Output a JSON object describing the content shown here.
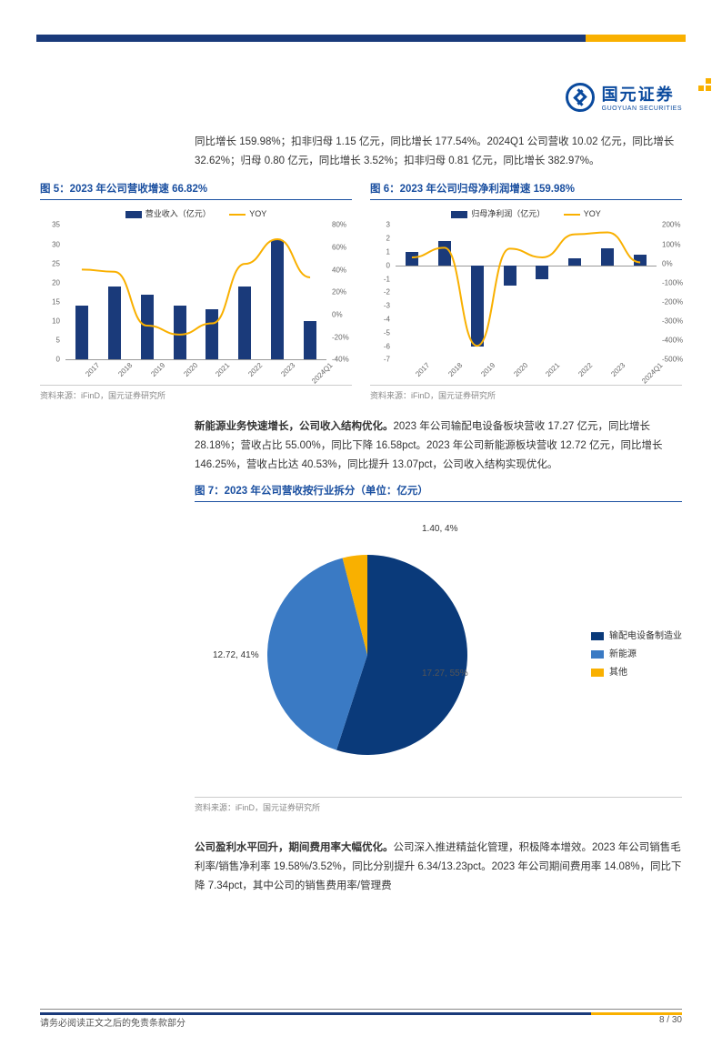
{
  "brand": {
    "cn": "国元证券",
    "en": "GUOYUAN SECURITIES"
  },
  "intro_text": "同比增长 159.98%；扣非归母 1.15 亿元，同比增长 177.54%。2024Q1 公司营收 10.02 亿元，同比增长 32.62%；归母 0.80 亿元，同比增长 3.52%；扣非归母 0.81 亿元，同比增长 382.97%。",
  "fig5": {
    "title": "图 5：2023 年公司营收增速 66.82%",
    "type": "bar+line",
    "legend_bar": "营业收入（亿元）",
    "legend_line": "YOY",
    "categories": [
      "2017",
      "2018",
      "2019",
      "2020",
      "2021",
      "2022",
      "2023",
      "2024Q1"
    ],
    "bar_values": [
      14,
      19,
      17,
      14,
      13,
      19,
      31,
      10
    ],
    "line_values_pct": [
      40,
      38,
      -10,
      -18,
      -8,
      45,
      67,
      33
    ],
    "y_left": {
      "min": 0,
      "max": 35,
      "step": 5
    },
    "y_right": {
      "min": -40,
      "max": 80,
      "step": 20
    },
    "bar_color": "#1a3a7a",
    "line_color": "#f9b000",
    "source": "资料来源：iFinD，国元证券研究所"
  },
  "fig6": {
    "title": "图 6：2023 年公司归母净利润增速 159.98%",
    "type": "bar+line",
    "legend_bar": "归母净利润（亿元）",
    "legend_line": "YOY",
    "categories": [
      "2017",
      "2018",
      "2019",
      "2020",
      "2021",
      "2022",
      "2023",
      "2024Q1"
    ],
    "bar_values": [
      1.0,
      1.8,
      -6.0,
      -1.5,
      -1.0,
      0.5,
      1.3,
      0.8
    ],
    "line_values_pct": [
      30,
      80,
      -430,
      75,
      30,
      150,
      160,
      4
    ],
    "y_left": {
      "min": -7,
      "max": 3,
      "step": 1
    },
    "y_right": {
      "min": -500,
      "max": 200,
      "step": 100
    },
    "bar_color": "#1a3a7a",
    "line_color": "#f9b000",
    "source": "资料来源：iFinD，国元证券研究所"
  },
  "para2": "新能源业务快速增长，公司收入结构优化。",
  "para2_body": "2023 年公司输配电设备板块营收 17.27 亿元，同比增长 28.18%；营收占比 55.00%，同比下降 16.58pct。2023 年公司新能源板块营收 12.72 亿元，同比增长 146.25%，营收占比达 40.53%，同比提升 13.07pct，公司收入结构实现优化。",
  "fig7": {
    "title": "图 7：2023 年公司营收按行业拆分（单位：亿元）",
    "type": "pie",
    "slices": [
      {
        "label": "输配电设备制造业",
        "value": 17.27,
        "pct": 55,
        "color": "#0a3a7a",
        "display": "17.27, 55%"
      },
      {
        "label": "新能源",
        "value": 12.72,
        "pct": 41,
        "color": "#3a7ac4",
        "display": "12.72, 41%"
      },
      {
        "label": "其他",
        "value": 1.4,
        "pct": 4,
        "color": "#f9b000",
        "display": "1.40, 4%"
      }
    ],
    "source": "资料来源：iFinD，国元证券研究所"
  },
  "para3": "公司盈利水平回升，期间费用率大幅优化。",
  "para3_body": "公司深入推进精益化管理，积极降本增效。2023 年公司销售毛利率/销售净利率 19.58%/3.52%，同比分别提升 6.34/13.23pct。2023 年公司期间费用率 14.08%，同比下降 7.34pct，其中公司的销售费用率/管理费",
  "footer_left": "请务必阅读正文之后的免责条款部分",
  "footer_right": "8 / 30"
}
